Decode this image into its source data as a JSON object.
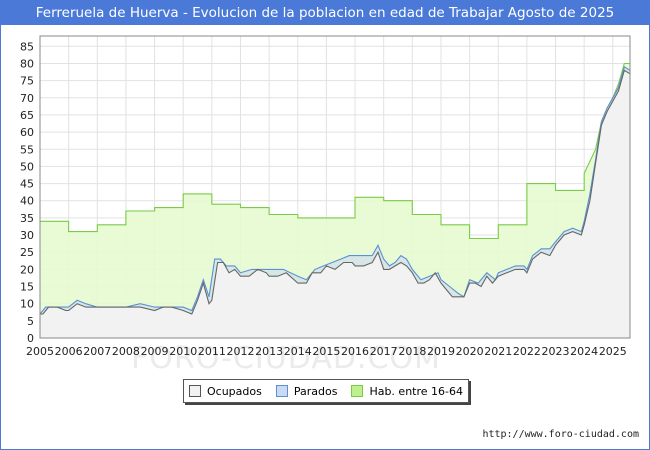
{
  "header": {
    "title": "Ferreruela de Huerva - Evolucion de la poblacion en edad de Trabajar Agosto de 2025"
  },
  "footer": {
    "credit": "http://www.foro-ciudad.com",
    "watermark": "FORO-CIUDAD.COM"
  },
  "colors": {
    "title_bg": "#4a79d8",
    "ocupados_fill": "#f2f2f2",
    "ocupados_line": "#666666",
    "parados_line": "#5b8fd6",
    "parados_fill": "#c9daf2",
    "hab_fill": "#e6fbd0",
    "hab_line": "#7acb47"
  },
  "chart_data": {
    "type": "area",
    "title": "Ferreruela de Huerva - Evolucion de la poblacion en edad de Trabajar Agosto de 2025",
    "xlabel": "",
    "ylabel": "",
    "xlim": [
      2005,
      2025.6
    ],
    "ylim": [
      0,
      88
    ],
    "yticks": [
      0,
      5,
      10,
      15,
      20,
      25,
      30,
      35,
      40,
      45,
      50,
      55,
      60,
      65,
      70,
      75,
      80,
      85
    ],
    "xticks": [
      "2005",
      "2006",
      "2007",
      "2008",
      "2009",
      "2010",
      "2011",
      "2012",
      "2013",
      "2014",
      "2015",
      "2016",
      "2017",
      "2018",
      "2019",
      "2020",
      "2021",
      "2022",
      "2023",
      "2024",
      "2025"
    ],
    "grid": true,
    "legend": [
      "Ocupados",
      "Parados",
      "Hab. entre 16-64"
    ],
    "series": [
      {
        "name": "Hab. entre 16-64",
        "points": [
          [
            2005.0,
            34
          ],
          [
            2006.0,
            34
          ],
          [
            2006.0,
            31
          ],
          [
            2007.0,
            31
          ],
          [
            2007.0,
            33
          ],
          [
            2008.0,
            33
          ],
          [
            2008.0,
            37
          ],
          [
            2009.0,
            37
          ],
          [
            2009.0,
            38
          ],
          [
            2010.0,
            38
          ],
          [
            2010.0,
            42
          ],
          [
            2011.0,
            42
          ],
          [
            2011.0,
            39
          ],
          [
            2012.0,
            39
          ],
          [
            2012.0,
            38
          ],
          [
            2013.0,
            38
          ],
          [
            2013.0,
            36
          ],
          [
            2014.0,
            36
          ],
          [
            2014.0,
            35
          ],
          [
            2016.0,
            35
          ],
          [
            2016.0,
            41
          ],
          [
            2017.0,
            41
          ],
          [
            2017.0,
            40
          ],
          [
            2018.0,
            40
          ],
          [
            2018.0,
            36
          ],
          [
            2019.0,
            36
          ],
          [
            2019.0,
            33
          ],
          [
            2020.0,
            33
          ],
          [
            2020.0,
            29
          ],
          [
            2021.0,
            29
          ],
          [
            2021.0,
            33
          ],
          [
            2022.0,
            33
          ],
          [
            2022.0,
            45
          ],
          [
            2023.0,
            45
          ],
          [
            2023.0,
            43
          ],
          [
            2024.0,
            43
          ],
          [
            2024.0,
            48
          ],
          [
            2024.4,
            55
          ],
          [
            2024.6,
            63
          ],
          [
            2024.8,
            67
          ],
          [
            2025.0,
            70
          ],
          [
            2025.2,
            74
          ],
          [
            2025.4,
            80
          ],
          [
            2025.6,
            80
          ]
        ]
      },
      {
        "name": "Parados",
        "points": [
          [
            2005.0,
            7
          ],
          [
            2005.2,
            9
          ],
          [
            2005.5,
            9
          ],
          [
            2005.8,
            9
          ],
          [
            2006.0,
            9
          ],
          [
            2006.3,
            11
          ],
          [
            2006.6,
            10
          ],
          [
            2007.0,
            9
          ],
          [
            2007.5,
            9
          ],
          [
            2008.0,
            9
          ],
          [
            2008.5,
            10
          ],
          [
            2009.0,
            9
          ],
          [
            2009.5,
            9
          ],
          [
            2010.0,
            9
          ],
          [
            2010.3,
            8
          ],
          [
            2010.5,
            12
          ],
          [
            2010.7,
            17
          ],
          [
            2010.9,
            12
          ],
          [
            2011.1,
            23
          ],
          [
            2011.3,
            23
          ],
          [
            2011.5,
            21
          ],
          [
            2011.8,
            21
          ],
          [
            2012.0,
            19
          ],
          [
            2012.4,
            20
          ],
          [
            2012.8,
            20
          ],
          [
            2013.0,
            20
          ],
          [
            2013.5,
            20
          ],
          [
            2014.0,
            18
          ],
          [
            2014.3,
            17
          ],
          [
            2014.6,
            20
          ],
          [
            2014.9,
            21
          ],
          [
            2015.2,
            22
          ],
          [
            2015.5,
            23
          ],
          [
            2015.8,
            24
          ],
          [
            2016.0,
            24
          ],
          [
            2016.3,
            24
          ],
          [
            2016.6,
            24
          ],
          [
            2016.8,
            27
          ],
          [
            2017.0,
            23
          ],
          [
            2017.2,
            21
          ],
          [
            2017.4,
            22
          ],
          [
            2017.6,
            24
          ],
          [
            2017.8,
            23
          ],
          [
            2018.0,
            20
          ],
          [
            2018.3,
            17
          ],
          [
            2018.6,
            18
          ],
          [
            2018.9,
            19
          ],
          [
            2019.0,
            17
          ],
          [
            2019.3,
            15
          ],
          [
            2019.6,
            13
          ],
          [
            2019.8,
            12
          ],
          [
            2020.0,
            17
          ],
          [
            2020.3,
            16
          ],
          [
            2020.6,
            19
          ],
          [
            2020.9,
            17
          ],
          [
            2021.0,
            19
          ],
          [
            2021.3,
            20
          ],
          [
            2021.6,
            21
          ],
          [
            2021.9,
            21
          ],
          [
            2022.0,
            20
          ],
          [
            2022.2,
            24
          ],
          [
            2022.5,
            26
          ],
          [
            2022.8,
            26
          ],
          [
            2023.0,
            28
          ],
          [
            2023.3,
            31
          ],
          [
            2023.6,
            32
          ],
          [
            2023.9,
            31
          ],
          [
            2024.0,
            34
          ],
          [
            2024.2,
            42
          ],
          [
            2024.4,
            52
          ],
          [
            2024.6,
            63
          ],
          [
            2024.8,
            67
          ],
          [
            2025.0,
            70
          ],
          [
            2025.2,
            73
          ],
          [
            2025.4,
            79
          ],
          [
            2025.6,
            78
          ]
        ]
      },
      {
        "name": "Ocupados",
        "points": [
          [
            2005.0,
            7
          ],
          [
            2005.1,
            7
          ],
          [
            2005.3,
            9
          ],
          [
            2005.6,
            9
          ],
          [
            2005.9,
            8
          ],
          [
            2006.0,
            8
          ],
          [
            2006.3,
            10
          ],
          [
            2006.6,
            9
          ],
          [
            2006.9,
            9
          ],
          [
            2007.0,
            9
          ],
          [
            2007.5,
            9
          ],
          [
            2008.0,
            9
          ],
          [
            2008.5,
            9
          ],
          [
            2009.0,
            8
          ],
          [
            2009.3,
            9
          ],
          [
            2009.6,
            9
          ],
          [
            2010.0,
            8
          ],
          [
            2010.3,
            7
          ],
          [
            2010.5,
            11
          ],
          [
            2010.7,
            16
          ],
          [
            2010.9,
            10
          ],
          [
            2011.0,
            11
          ],
          [
            2011.2,
            22
          ],
          [
            2011.4,
            22
          ],
          [
            2011.6,
            19
          ],
          [
            2011.8,
            20
          ],
          [
            2012.0,
            18
          ],
          [
            2012.3,
            18
          ],
          [
            2012.6,
            20
          ],
          [
            2012.9,
            19
          ],
          [
            2013.0,
            18
          ],
          [
            2013.3,
            18
          ],
          [
            2013.6,
            19
          ],
          [
            2014.0,
            16
          ],
          [
            2014.3,
            16
          ],
          [
            2014.5,
            19
          ],
          [
            2014.8,
            19
          ],
          [
            2015.0,
            21
          ],
          [
            2015.3,
            20
          ],
          [
            2015.6,
            22
          ],
          [
            2015.9,
            22
          ],
          [
            2016.0,
            21
          ],
          [
            2016.3,
            21
          ],
          [
            2016.6,
            22
          ],
          [
            2016.8,
            25
          ],
          [
            2017.0,
            20
          ],
          [
            2017.2,
            20
          ],
          [
            2017.4,
            21
          ],
          [
            2017.6,
            22
          ],
          [
            2017.8,
            21
          ],
          [
            2018.0,
            19
          ],
          [
            2018.2,
            16
          ],
          [
            2018.4,
            16
          ],
          [
            2018.6,
            17
          ],
          [
            2018.8,
            19
          ],
          [
            2019.0,
            16
          ],
          [
            2019.2,
            14
          ],
          [
            2019.4,
            12
          ],
          [
            2019.6,
            12
          ],
          [
            2019.8,
            12
          ],
          [
            2020.0,
            16
          ],
          [
            2020.2,
            16
          ],
          [
            2020.4,
            15
          ],
          [
            2020.6,
            18
          ],
          [
            2020.8,
            16
          ],
          [
            2021.0,
            18
          ],
          [
            2021.3,
            19
          ],
          [
            2021.6,
            20
          ],
          [
            2021.9,
            20
          ],
          [
            2022.0,
            19
          ],
          [
            2022.2,
            23
          ],
          [
            2022.5,
            25
          ],
          [
            2022.8,
            24
          ],
          [
            2023.0,
            27
          ],
          [
            2023.3,
            30
          ],
          [
            2023.6,
            31
          ],
          [
            2023.9,
            30
          ],
          [
            2024.0,
            33
          ],
          [
            2024.2,
            40
          ],
          [
            2024.4,
            51
          ],
          [
            2024.6,
            62
          ],
          [
            2024.8,
            66
          ],
          [
            2025.0,
            69
          ],
          [
            2025.2,
            72
          ],
          [
            2025.4,
            78
          ],
          [
            2025.6,
            77
          ]
        ]
      }
    ]
  }
}
